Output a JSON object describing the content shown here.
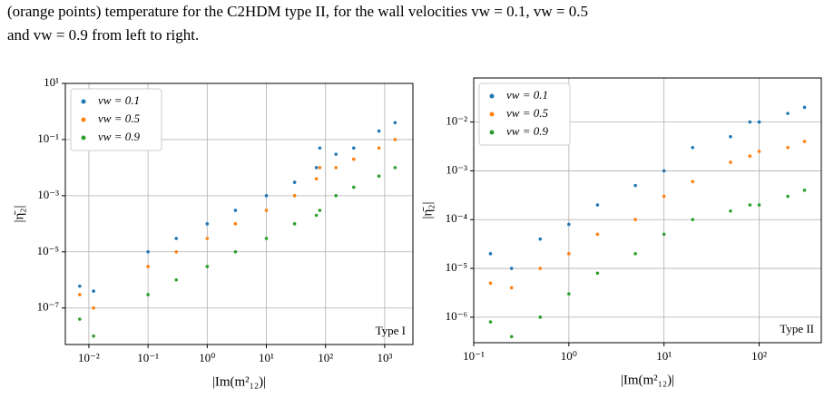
{
  "caption_lines": [
    "(orange points) temperature for the C2HDM type II, for the wall velocities vw = 0.1, vw = 0.5",
    "and vw = 0.9 from left to right."
  ],
  "chart_data": [
    {
      "type": "scatter",
      "xscale": "log",
      "yscale": "log",
      "grid": true,
      "legend": "upper left",
      "xlabel": "|Im(m²₁₂)|",
      "ylabel": "|η̄₂|",
      "annotation": "Type I",
      "xlim": [
        0.004,
        3000
      ],
      "ylim": [
        5e-09,
        10
      ],
      "xticks": [
        {
          "value": 0.01,
          "label": "10⁻²"
        },
        {
          "value": 0.1,
          "label": "10⁻¹"
        },
        {
          "value": 1,
          "label": "10⁰"
        },
        {
          "value": 10,
          "label": "10¹"
        },
        {
          "value": 100,
          "label": "10²"
        },
        {
          "value": 1000,
          "label": "10³"
        }
      ],
      "yticks": [
        {
          "value": 10,
          "label": "10¹"
        },
        {
          "value": 0.1,
          "label": "10⁻¹"
        },
        {
          "value": 0.001,
          "label": "10⁻³"
        },
        {
          "value": 1e-05,
          "label": "10⁻⁵"
        },
        {
          "value": 1e-07,
          "label": "10⁻⁷"
        }
      ],
      "x": [
        0.007,
        0.012,
        0.1,
        0.3,
        1,
        3,
        10,
        30,
        70,
        80,
        150,
        300,
        800,
        1500
      ],
      "series": [
        {
          "name": "vw = 0.1",
          "color": "#1f77b4",
          "values": [
            6e-07,
            4e-07,
            1e-05,
            3e-05,
            0.0001,
            0.0003,
            0.001,
            0.003,
            0.01,
            0.05,
            0.03,
            0.05,
            0.2,
            0.4
          ]
        },
        {
          "name": "vw = 0.5",
          "color": "#ff7f0e",
          "values": [
            3e-07,
            1e-07,
            3e-06,
            1e-05,
            3e-05,
            0.0001,
            0.0003,
            0.001,
            0.004,
            0.01,
            0.01,
            0.02,
            0.05,
            0.1
          ]
        },
        {
          "name": "vw = 0.9",
          "color": "#2ca02c",
          "values": [
            4e-08,
            1e-08,
            3e-07,
            1e-06,
            3e-06,
            1e-05,
            3e-05,
            0.0001,
            0.0002,
            0.0003,
            0.001,
            0.002,
            0.005,
            0.01
          ]
        }
      ]
    },
    {
      "type": "scatter",
      "xscale": "log",
      "yscale": "log",
      "grid": true,
      "legend": "upper left",
      "xlabel": "|Im(m²₁₂)|",
      "ylabel": "|η̄₂|",
      "annotation": "Type II",
      "xlim": [
        0.1,
        450
      ],
      "ylim": [
        3e-07,
        0.08
      ],
      "xticks": [
        {
          "value": 0.1,
          "label": "10⁻¹"
        },
        {
          "value": 1,
          "label": "10⁰"
        },
        {
          "value": 10,
          "label": "10¹"
        },
        {
          "value": 100,
          "label": "10²"
        }
      ],
      "yticks": [
        {
          "value": 0.01,
          "label": "10⁻²"
        },
        {
          "value": 0.001,
          "label": "10⁻³"
        },
        {
          "value": 0.0001,
          "label": "10⁻⁴"
        },
        {
          "value": 1e-05,
          "label": "10⁻⁵"
        },
        {
          "value": 1e-06,
          "label": "10⁻⁶"
        }
      ],
      "x": [
        0.15,
        0.25,
        0.5,
        1,
        2,
        5,
        10,
        20,
        50,
        80,
        100,
        200,
        300
      ],
      "series": [
        {
          "name": "vw = 0.1",
          "color": "#1f77b4",
          "values": [
            2e-05,
            1e-05,
            4e-05,
            8e-05,
            0.0002,
            0.0005,
            0.001,
            0.003,
            0.005,
            0.01,
            0.01,
            0.015,
            0.02
          ]
        },
        {
          "name": "vw = 0.5",
          "color": "#ff7f0e",
          "values": [
            5e-06,
            4e-06,
            1e-05,
            2e-05,
            5e-05,
            0.0001,
            0.0003,
            0.0006,
            0.0015,
            0.002,
            0.0025,
            0.003,
            0.004
          ]
        },
        {
          "name": "vw = 0.9",
          "color": "#2ca02c",
          "values": [
            8e-07,
            4e-07,
            1e-06,
            3e-06,
            8e-06,
            2e-05,
            5e-05,
            0.0001,
            0.00015,
            0.0002,
            0.0002,
            0.0003,
            0.0004
          ]
        }
      ]
    }
  ]
}
